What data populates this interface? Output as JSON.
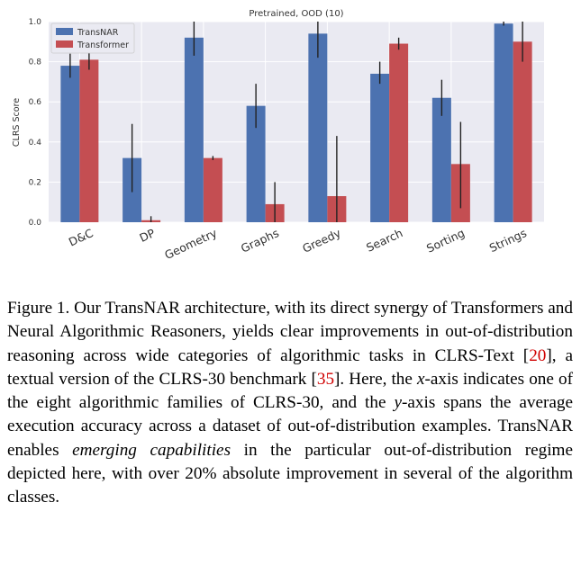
{
  "chart_data": {
    "type": "bar",
    "title": "Pretrained, OOD (10)",
    "xlabel": "",
    "ylabel": "CLRS Score",
    "ylim": [
      0,
      1.0
    ],
    "yticks": [
      "0.0",
      "0.2",
      "0.4",
      "0.6",
      "0.8",
      "1.0"
    ],
    "grid": true,
    "legend_position": "top-left",
    "categories": [
      "D&C",
      "DP",
      "Geometry",
      "Graphs",
      "Greedy",
      "Search",
      "Sorting",
      "Strings"
    ],
    "series": [
      {
        "name": "TransNAR",
        "color": "#4c72b0",
        "values": [
          0.78,
          0.32,
          0.92,
          0.58,
          0.94,
          0.74,
          0.62,
          0.99
        ],
        "error_low": [
          0.72,
          0.15,
          0.83,
          0.47,
          0.82,
          0.69,
          0.53,
          0.98
        ],
        "error_high": [
          0.84,
          0.49,
          1.0,
          0.69,
          1.0,
          0.8,
          0.71,
          1.0
        ]
      },
      {
        "name": "Transformer",
        "color": "#c44e52",
        "values": [
          0.81,
          0.01,
          0.32,
          0.09,
          0.13,
          0.89,
          0.29,
          0.9
        ],
        "error_low": [
          0.76,
          0.0,
          0.31,
          0.0,
          0.0,
          0.86,
          0.07,
          0.8
        ],
        "error_high": [
          0.86,
          0.03,
          0.33,
          0.2,
          0.43,
          0.92,
          0.5,
          1.0
        ]
      }
    ]
  },
  "caption": {
    "prefix": "Figure 1.  Our TransNAR architecture, with its direct synergy of Transformers and Neural Algorithmic Reasoners, yields clear improvements in out-of-distribution reasoning across wide categories of algorithmic tasks in CLRS-Text [",
    "ref1": "20",
    "mid1": "], a textual version of the CLRS-30 benchmark [",
    "ref2": "35",
    "mid2": "].  Here, the ",
    "xvar": "x",
    "mid3": "-axis indicates one of the eight algorithmic families of CLRS-30, and the ",
    "yvar": "y",
    "mid4": "-axis spans the average execution accuracy across a dataset of out-of-distribution examples. TransNAR enables ",
    "emph": "emerging capabilities",
    "suffix": " in the particular out-of-distribution regime depicted here, with over 20% absolute improvement in several of the algorithm classes."
  }
}
